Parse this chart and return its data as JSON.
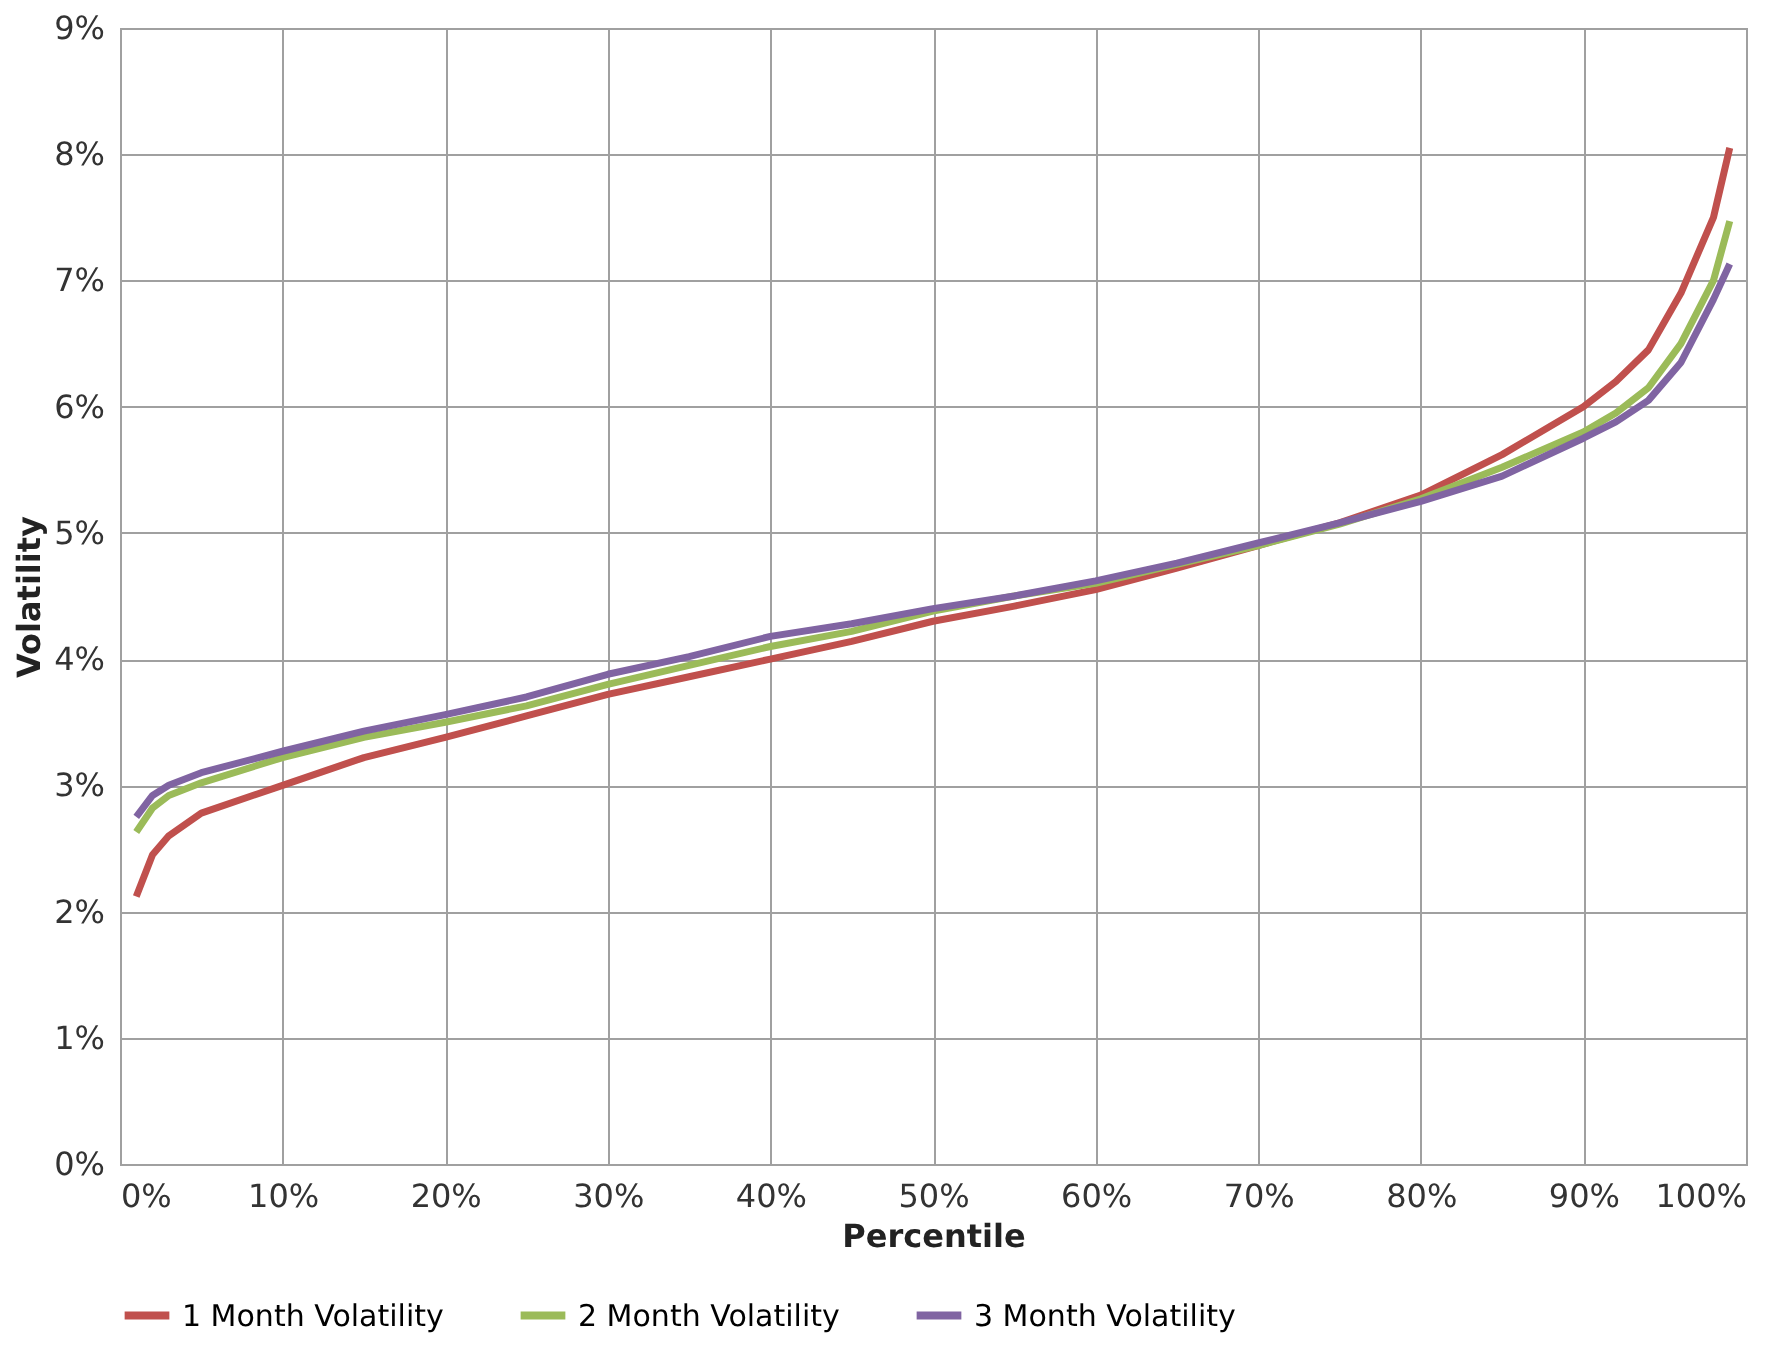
{
  "chart_data": {
    "type": "line",
    "xlabel": "Percentile",
    "ylabel": "Volatility",
    "x": [
      1,
      2,
      3,
      5,
      10,
      15,
      20,
      25,
      30,
      35,
      40,
      45,
      50,
      55,
      60,
      65,
      70,
      75,
      80,
      85,
      90,
      92,
      94,
      96,
      98,
      99
    ],
    "series": [
      {
        "name": "1 Month Volatility",
        "color": "#c0504d",
        "values": [
          2.12,
          2.45,
          2.6,
          2.78,
          3.0,
          3.22,
          3.38,
          3.55,
          3.72,
          3.86,
          4.0,
          4.14,
          4.3,
          4.42,
          4.55,
          4.72,
          4.9,
          5.08,
          5.3,
          5.62,
          6.0,
          6.2,
          6.45,
          6.9,
          7.5,
          8.05
        ]
      },
      {
        "name": "2 Month Volatility",
        "color": "#9bbb59",
        "values": [
          2.63,
          2.82,
          2.92,
          3.02,
          3.22,
          3.38,
          3.5,
          3.63,
          3.8,
          3.95,
          4.1,
          4.22,
          4.38,
          4.5,
          4.6,
          4.75,
          4.9,
          5.07,
          5.27,
          5.52,
          5.8,
          5.95,
          6.15,
          6.5,
          7.0,
          7.47
        ]
      },
      {
        "name": "3 Month Volatility",
        "color": "#8064a2",
        "values": [
          2.75,
          2.92,
          3.0,
          3.1,
          3.27,
          3.43,
          3.56,
          3.7,
          3.88,
          4.02,
          4.18,
          4.28,
          4.4,
          4.5,
          4.62,
          4.76,
          4.92,
          5.08,
          5.25,
          5.45,
          5.75,
          5.88,
          6.05,
          6.35,
          6.85,
          7.13
        ]
      }
    ],
    "xlim": [
      0,
      100
    ],
    "xticks": [
      {
        "value": 0,
        "label": "0%"
      },
      {
        "value": 10,
        "label": "10%"
      },
      {
        "value": 20,
        "label": "20%"
      },
      {
        "value": 30,
        "label": "30%"
      },
      {
        "value": 40,
        "label": "40%"
      },
      {
        "value": 50,
        "label": "50%"
      },
      {
        "value": 60,
        "label": "60%"
      },
      {
        "value": 70,
        "label": "70%"
      },
      {
        "value": 80,
        "label": "80%"
      },
      {
        "value": 90,
        "label": "90%"
      },
      {
        "value": 100,
        "label": "100%"
      }
    ],
    "ylim": [
      0,
      9
    ],
    "yticks": [
      {
        "value": 0,
        "label": "0%"
      },
      {
        "value": 1,
        "label": "1%"
      },
      {
        "value": 2,
        "label": "2%"
      },
      {
        "value": 3,
        "label": "3%"
      },
      {
        "value": 4,
        "label": "4%"
      },
      {
        "value": 5,
        "label": "5%"
      },
      {
        "value": 6,
        "label": "6%"
      },
      {
        "value": 7,
        "label": "7%"
      },
      {
        "value": 8,
        "label": "8%"
      },
      {
        "value": 9,
        "label": "9%"
      }
    ],
    "grid": true,
    "legend": "bottom",
    "marker": "none",
    "line_style": "solid"
  }
}
